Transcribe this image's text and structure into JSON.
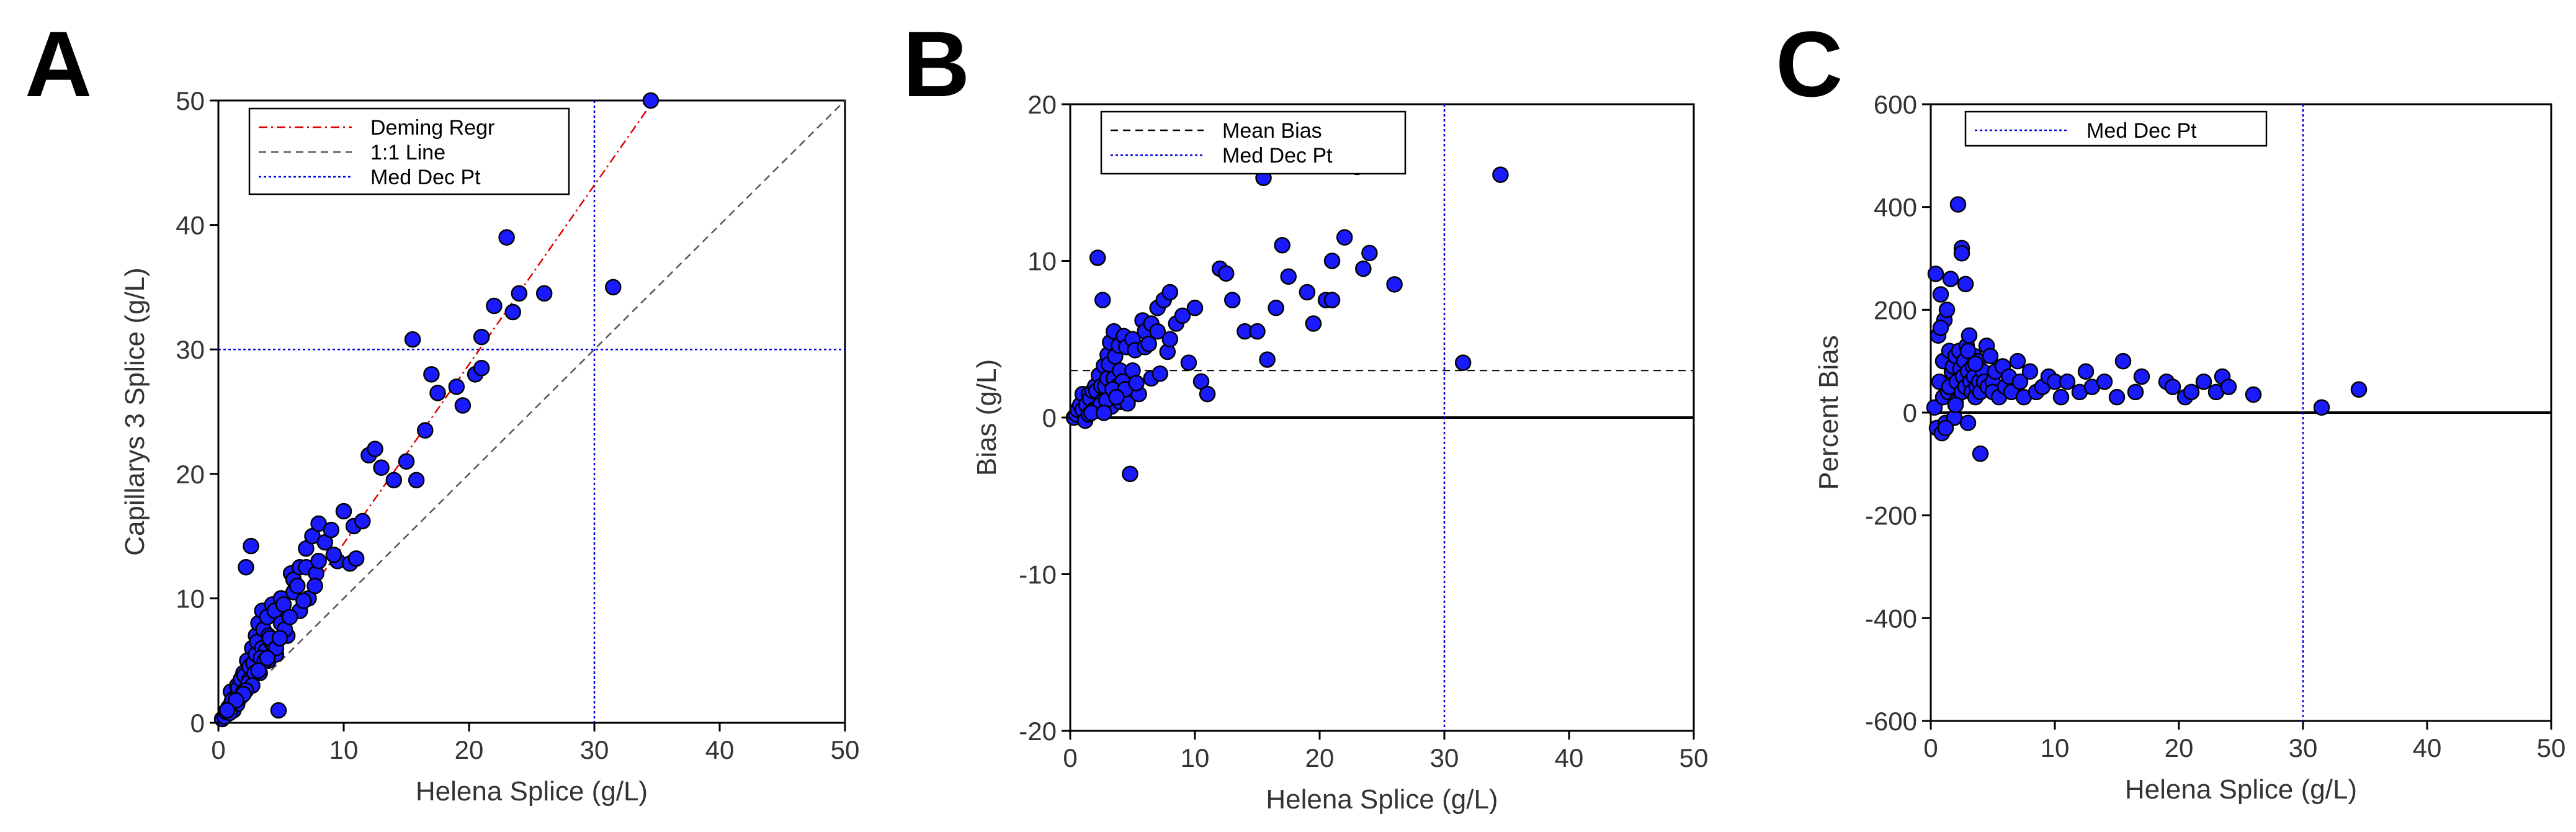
{
  "chart_data": [
    {
      "panel": "A",
      "type": "scatter",
      "xlabel": "Helena Splice (g/L)",
      "ylabel": "Capillarys 3 Splice (g/L)",
      "xlim": [
        0,
        50
      ],
      "ylim": [
        0,
        50
      ],
      "xticks": [
        "0",
        "10",
        "20",
        "30",
        "40",
        "50"
      ],
      "yticks": [
        "0",
        "10",
        "20",
        "30",
        "40",
        "50"
      ],
      "grid": false,
      "legend_position": "top-left",
      "legend": [
        {
          "label": "Deming Regr",
          "color": "#e00000",
          "style": "dashdot"
        },
        {
          "label": "1:1 Line",
          "color": "#555555",
          "style": "dashed"
        },
        {
          "label": "Med Dec Pt",
          "color": "#0000dd",
          "style": "dotted"
        }
      ],
      "lines": {
        "deming": {
          "slope": 1.44,
          "intercept": 0.0
        },
        "identity": {
          "slope": 1.0,
          "intercept": 0.0
        },
        "vline": 30,
        "hline": 30
      },
      "marker_color": "#1a1aff",
      "x": [
        0.3,
        0.5,
        0.6,
        0.8,
        1.0,
        1.0,
        1.2,
        1.3,
        1.5,
        1.5,
        1.6,
        1.8,
        1.9,
        2.0,
        2.0,
        2.1,
        2.2,
        2.3,
        2.5,
        2.5,
        2.6,
        2.7,
        2.8,
        3.0,
        3.0,
        3.1,
        3.2,
        3.3,
        3.5,
        3.5,
        3.6,
        3.8,
        3.9,
        4.0,
        4.0,
        4.2,
        4.3,
        4.5,
        4.6,
        4.8,
        5.0,
        5.0,
        5.2,
        5.5,
        5.8,
        6.0,
        6.0,
        6.3,
        6.5,
        6.5,
        7.0,
        7.0,
        7.2,
        7.5,
        7.8,
        8.0,
        8.0,
        8.5,
        9.0,
        9.5,
        10.0,
        10.5,
        11.0,
        12.0,
        12.5,
        13.0,
        14.0,
        15.0,
        15.5,
        15.8,
        16.5,
        17.0,
        17.5,
        19.0,
        19.5,
        20.5,
        21.0,
        21.0,
        22.0,
        23.0,
        23.5,
        24.0,
        26.0,
        31.5,
        34.5,
        1.7,
        2.4,
        3.4,
        2.9,
        4.4,
        1.1,
        0.9,
        2.7,
        3.7,
        4.1,
        5.3,
        5.7,
        6.8,
        7.7,
        9.2,
        10.8,
        11.5,
        2.2,
        3.2,
        4.6,
        2.0,
        1.4,
        0.7,
        3.9,
        4.9
      ],
      "y": [
        0.3,
        0.5,
        0.9,
        1.2,
        1.5,
        2.5,
        1.0,
        2.0,
        3.0,
        1.5,
        2.8,
        3.5,
        2.2,
        4.0,
        2.5,
        3.8,
        12.5,
        5.0,
        3.5,
        4.5,
        14.2,
        6.0,
        4.8,
        5.5,
        7.0,
        6.5,
        8.0,
        4.0,
        9.0,
        6.0,
        7.5,
        5.8,
        8.5,
        5.0,
        7.0,
        6.5,
        9.5,
        9.0,
        5.5,
        1.0,
        8.0,
        10.0,
        9.5,
        7.0,
        12.0,
        11.5,
        10.5,
        11.0,
        9.0,
        12.5,
        12.5,
        14.0,
        10.0,
        15.0,
        12.0,
        13.0,
        16.0,
        14.5,
        15.5,
        13.0,
        17.0,
        12.8,
        13.2,
        21.5,
        22.0,
        20.5,
        19.5,
        21.0,
        30.8,
        19.5,
        23.5,
        28.0,
        26.5,
        27.0,
        25.5,
        28.0,
        28.5,
        31.0,
        33.5,
        39.0,
        33.0,
        34.5,
        34.5,
        35.0,
        50.0,
        2.0,
        3.2,
        5.2,
        4.0,
        6.2,
        1.8,
        0.8,
        3.0,
        5.0,
        6.8,
        7.5,
        8.5,
        9.8,
        11.0,
        13.5,
        15.8,
        16.2,
        2.6,
        4.2,
        6.0,
        2.3,
        1.8,
        1.0,
        5.2,
        6.8
      ]
    },
    {
      "panel": "B",
      "type": "scatter",
      "xlabel": "Helena Splice (g/L)",
      "ylabel": "Bias (g/L)",
      "xlim": [
        0,
        50
      ],
      "ylim": [
        -20,
        20
      ],
      "xticks": [
        "0",
        "10",
        "20",
        "30",
        "40",
        "50"
      ],
      "yticks": [
        "-20",
        "-10",
        "0",
        "10",
        "20"
      ],
      "grid": false,
      "legend_position": "top-left",
      "legend": [
        {
          "label": "Mean Bias",
          "color": "#000000",
          "style": "dashed"
        },
        {
          "label": "Med Dec Pt",
          "color": "#0000dd",
          "style": "dotted"
        }
      ],
      "lines": {
        "mean_bias": 3.0,
        "zero": 0,
        "vline": 30
      },
      "marker_color": "#1a1aff",
      "x": [
        0.3,
        0.5,
        0.6,
        0.8,
        1.0,
        1.0,
        1.2,
        1.3,
        1.5,
        1.5,
        1.6,
        1.8,
        1.9,
        2.0,
        2.0,
        2.1,
        2.2,
        2.3,
        2.5,
        2.5,
        2.6,
        2.7,
        2.8,
        3.0,
        3.0,
        3.1,
        3.2,
        3.3,
        3.5,
        3.5,
        3.6,
        3.8,
        3.9,
        4.0,
        4.0,
        4.2,
        4.3,
        4.5,
        4.6,
        4.8,
        5.0,
        5.0,
        5.2,
        5.5,
        5.8,
        6.0,
        6.0,
        6.3,
        6.5,
        6.5,
        7.0,
        7.0,
        7.2,
        7.5,
        7.8,
        8.0,
        8.0,
        8.5,
        9.0,
        9.5,
        10.0,
        10.5,
        11.0,
        12.0,
        12.5,
        13.0,
        14.0,
        15.0,
        15.5,
        15.8,
        16.5,
        17.0,
        17.5,
        19.0,
        19.5,
        20.5,
        21.0,
        21.0,
        22.0,
        23.0,
        23.5,
        24.0,
        26.0,
        31.5,
        34.5,
        2.4,
        2.9,
        3.4,
        1.7,
        4.4,
        3.7,
        2.7,
        5.3
      ],
      "y": [
        0.0,
        0.2,
        0.5,
        0.8,
        0.5,
        1.5,
        -0.2,
        0.8,
        1.5,
        0.2,
        1.2,
        1.7,
        0.5,
        2.0,
        0.5,
        1.7,
        10.2,
        2.7,
        1.0,
        2.0,
        7.5,
        3.3,
        2.0,
        2.5,
        4.0,
        3.4,
        4.8,
        0.7,
        5.5,
        2.5,
        3.9,
        2.0,
        4.6,
        1.0,
        3.0,
        2.3,
        5.2,
        4.5,
        0.9,
        -3.6,
        3.0,
        5.0,
        4.3,
        1.5,
        6.2,
        5.5,
        4.5,
        4.7,
        2.5,
        6.0,
        5.5,
        7.0,
        2.8,
        7.5,
        4.2,
        5.0,
        8.0,
        6.0,
        6.5,
        3.5,
        7.0,
        2.3,
        1.5,
        9.5,
        9.2,
        7.5,
        5.5,
        5.5,
        15.3,
        3.7,
        7.0,
        11.0,
        9.0,
        8.0,
        6.0,
        7.5,
        7.5,
        10.0,
        11.5,
        16.0,
        9.5,
        10.5,
        8.5,
        3.5,
        15.5,
        0.8,
        1.1,
        1.8,
        0.3,
        1.8,
        1.3,
        0.3,
        2.2
      ]
    },
    {
      "panel": "C",
      "type": "scatter",
      "xlabel": "Helena Splice (g/L)",
      "ylabel": "Percent Bias",
      "xlim": [
        0,
        50
      ],
      "ylim": [
        -600,
        600
      ],
      "xticks": [
        "0",
        "10",
        "20",
        "30",
        "40",
        "50"
      ],
      "yticks": [
        "-600",
        "-400",
        "-200",
        "0",
        "200",
        "400",
        "600"
      ],
      "grid": false,
      "legend_position": "top-left",
      "legend": [
        {
          "label": "Med Dec Pt",
          "color": "#0000dd",
          "style": "dotted"
        }
      ],
      "lines": {
        "zero": 0,
        "vline": 30
      },
      "marker_color": "#1a1aff",
      "x": [
        0.3,
        0.4,
        0.5,
        0.6,
        0.7,
        0.8,
        0.9,
        1.0,
        1.0,
        1.1,
        1.2,
        1.3,
        1.4,
        1.5,
        1.5,
        1.6,
        1.7,
        1.8,
        1.9,
        2.0,
        2.0,
        2.1,
        2.2,
        2.3,
        2.4,
        2.5,
        2.5,
        2.6,
        2.7,
        2.8,
        2.9,
        3.0,
        3.0,
        3.1,
        3.2,
        3.3,
        3.4,
        3.5,
        3.5,
        3.6,
        3.7,
        3.8,
        3.9,
        4.0,
        4.0,
        4.2,
        4.3,
        4.5,
        4.6,
        4.8,
        5.0,
        5.0,
        5.2,
        5.5,
        5.8,
        6.0,
        6.3,
        6.5,
        7.0,
        7.2,
        7.5,
        8.0,
        8.5,
        9.0,
        9.5,
        10.0,
        10.5,
        11.0,
        12.0,
        12.5,
        13.0,
        14.0,
        15.0,
        15.5,
        16.5,
        17.0,
        19.0,
        19.5,
        20.5,
        21.0,
        22.0,
        23.0,
        23.5,
        24.0,
        26.0,
        31.5,
        34.5,
        2.5,
        3.0,
        2.0,
        2.8,
        1.2,
        0.8,
        3.6
      ],
      "y": [
        10,
        270,
        -30,
        150,
        60,
        230,
        -40,
        100,
        30,
        180,
        -20,
        200,
        40,
        120,
        50,
        260,
        80,
        90,
        -10,
        110,
        20,
        60,
        405,
        120,
        85,
        40,
        320,
        70,
        100,
        50,
        130,
        80,
        -20,
        150,
        60,
        40,
        90,
        110,
        70,
        30,
        50,
        100,
        60,
        -80,
        40,
        80,
        60,
        130,
        50,
        110,
        60,
        40,
        80,
        30,
        90,
        50,
        70,
        40,
        100,
        60,
        30,
        80,
        40,
        50,
        70,
        60,
        30,
        60,
        40,
        80,
        50,
        60,
        30,
        100,
        40,
        70,
        60,
        50,
        30,
        40,
        60,
        40,
        70,
        50,
        35,
        10,
        45,
        310,
        120,
        15,
        250,
        -30,
        165,
        95
      ]
    }
  ]
}
